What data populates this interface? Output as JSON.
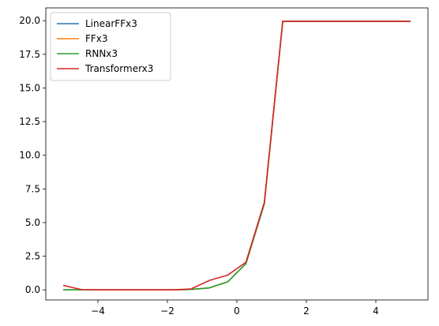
{
  "chart_data": {
    "type": "line",
    "x": [
      -5.0,
      -4.47,
      -3.95,
      -3.42,
      -2.89,
      -2.37,
      -1.84,
      -1.32,
      -0.79,
      -0.26,
      0.26,
      0.79,
      1.32,
      1.84,
      2.37,
      2.89,
      3.42,
      3.95,
      4.47,
      5.0
    ],
    "series": [
      {
        "name": "LinearFFx3",
        "color": "#1f77b4",
        "values": [
          0.0,
          0.0,
          0.0,
          0.0,
          0.0,
          0.0,
          0.0,
          0.03,
          0.15,
          0.6,
          1.95,
          6.4,
          19.95,
          19.95,
          19.95,
          19.95,
          19.95,
          19.95,
          19.95,
          19.95
        ]
      },
      {
        "name": "FFx3",
        "color": "#ff7f0e",
        "values": [
          0.0,
          0.0,
          0.0,
          0.0,
          0.0,
          0.0,
          0.0,
          0.03,
          0.15,
          0.6,
          1.95,
          6.4,
          19.95,
          19.95,
          19.95,
          19.95,
          19.95,
          19.95,
          19.95,
          19.95
        ]
      },
      {
        "name": "RNNx3",
        "color": "#2ca02c",
        "values": [
          0.0,
          0.0,
          0.0,
          0.0,
          0.0,
          0.0,
          0.0,
          0.03,
          0.15,
          0.6,
          1.95,
          6.4,
          19.95,
          19.95,
          19.95,
          19.95,
          19.95,
          19.95,
          19.95,
          19.95
        ]
      },
      {
        "name": "Transformerx3",
        "color": "#d62728",
        "values": [
          0.33,
          0.02,
          0.0,
          0.0,
          0.0,
          0.0,
          0.0,
          0.07,
          0.7,
          1.1,
          2.05,
          6.5,
          19.95,
          19.95,
          19.95,
          19.95,
          19.95,
          19.95,
          19.95,
          19.95
        ]
      }
    ],
    "xlim": [
      -5.5,
      5.5
    ],
    "ylim": [
      -0.75,
      20.95
    ],
    "xticks": [
      -4,
      -2,
      0,
      2,
      4
    ],
    "xtick_labels": [
      "−4",
      "−2",
      "0",
      "2",
      "4"
    ],
    "yticks": [
      0.0,
      2.5,
      5.0,
      7.5,
      10.0,
      12.5,
      15.0,
      17.5,
      20.0
    ],
    "ytick_labels": [
      "0.0",
      "2.5",
      "5.0",
      "7.5",
      "10.0",
      "12.5",
      "15.0",
      "17.5",
      "20.0"
    ],
    "grid": false,
    "legend": "upper-left"
  }
}
